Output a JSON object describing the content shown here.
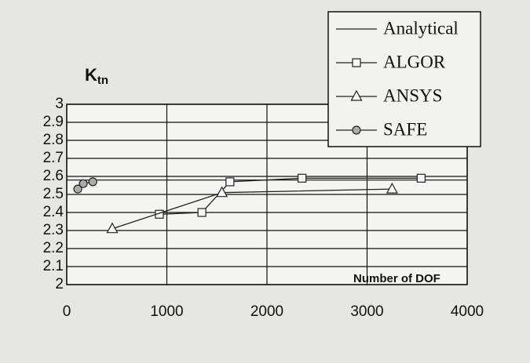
{
  "chart_data": {
    "type": "line",
    "y_label": {
      "main": "K",
      "sub": "tn"
    },
    "x_label": "Number of DOF",
    "xlim": [
      0,
      4000
    ],
    "xticks": [
      0,
      1000,
      2000,
      3000,
      4000
    ],
    "ylim": [
      2,
      3
    ],
    "yticks": [
      2,
      2.1,
      2.2,
      2.3,
      2.4,
      2.5,
      2.6,
      2.7,
      2.8,
      2.9,
      3
    ],
    "grid": true,
    "legend": "top-right",
    "series": [
      {
        "name": "Analytical",
        "color": "#222222",
        "marker": "none",
        "x": [
          0,
          4000
        ],
        "values": [
          2.58,
          2.58
        ]
      },
      {
        "name": "ALGOR",
        "color": "#222222",
        "marker": "square",
        "x": [
          925,
          1350,
          1630,
          2350,
          3540
        ],
        "values": [
          2.39,
          2.4,
          2.57,
          2.59,
          2.59
        ]
      },
      {
        "name": "ANSYS",
        "color": "#222222",
        "marker": "triangle",
        "x": [
          455,
          1550,
          3250
        ],
        "values": [
          2.31,
          2.51,
          2.53
        ]
      },
      {
        "name": "SAFE",
        "color": "#222222",
        "marker": "circle",
        "x": [
          110,
          165,
          260
        ],
        "values": [
          2.53,
          2.56,
          2.57
        ]
      }
    ]
  }
}
